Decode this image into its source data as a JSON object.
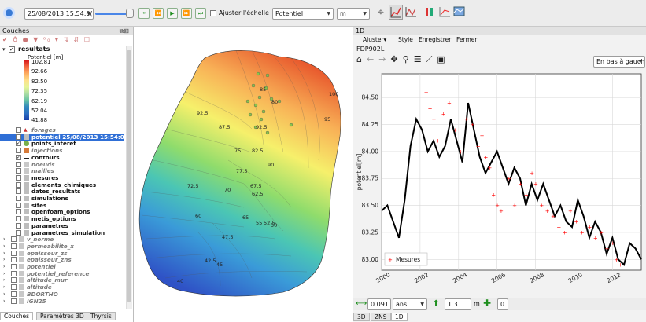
{
  "toolbar": {
    "datetime": "25/08/2013 15:54:0(",
    "ajuster_echelle": "Ajuster l'échelle",
    "variable": "Potentiel",
    "unit": "m"
  },
  "left_panel": {
    "title": "Couches",
    "buttons_label": "°°",
    "legend": {
      "layer_name": "resultats",
      "title": "Potentiel [m]",
      "values": [
        "102.81",
        "92.66",
        "82.50",
        "72.35",
        "62.19",
        "52.04",
        "41.88"
      ],
      "colors": [
        "#d7191c",
        "#fdae61",
        "#ffffbf",
        "#abdda4",
        "#2b83ba",
        "#1d5fb5",
        "#1a3fa8"
      ]
    },
    "layers": [
      {
        "label": "forages",
        "style": "grey-it",
        "checked": false
      },
      {
        "label": "potentiel 25/08/2013 15:54:0",
        "style": "selected",
        "checked": true
      },
      {
        "label": "points_interet",
        "style": "bold",
        "checked": true
      },
      {
        "label": "injections",
        "style": "grey-it",
        "checked": false
      },
      {
        "label": "contours",
        "style": "bold",
        "checked": true
      },
      {
        "label": "noeuds",
        "style": "grey-it",
        "checked": false
      },
      {
        "label": "mailles",
        "style": "grey-it",
        "checked": false
      },
      {
        "label": "mesures",
        "style": "bold",
        "checked": false
      },
      {
        "label": "elements_chimiques",
        "style": "bold",
        "checked": false
      },
      {
        "label": "dates_resultats",
        "style": "bold",
        "checked": false
      },
      {
        "label": "simulations",
        "style": "bold",
        "checked": false
      },
      {
        "label": "sites",
        "style": "bold",
        "checked": false
      },
      {
        "label": "openfoam_options",
        "style": "bold",
        "checked": false
      },
      {
        "label": "metis_options",
        "style": "bold",
        "checked": false
      },
      {
        "label": "parametres",
        "style": "bold",
        "checked": false
      },
      {
        "label": "parametres_simulation",
        "style": "bold",
        "checked": false
      },
      {
        "label": "v_norme",
        "style": "grey-it",
        "checked": false
      },
      {
        "label": "permeabilite_x",
        "style": "grey-it",
        "checked": false
      },
      {
        "label": "epaisseur_zs",
        "style": "grey-it",
        "checked": false
      },
      {
        "label": "epaisseur_zns",
        "style": "grey-it",
        "checked": false
      },
      {
        "label": "potentiel",
        "style": "grey-it",
        "checked": false
      },
      {
        "label": "potentiel_reference",
        "style": "grey-it",
        "checked": false
      },
      {
        "label": "altitude_mur",
        "style": "grey-it",
        "checked": false
      },
      {
        "label": "altitude",
        "style": "grey-it",
        "checked": false
      },
      {
        "label": "BDORTHO",
        "style": "grey-it",
        "checked": false
      },
      {
        "label": "IGN25",
        "style": "grey-it",
        "checked": false
      }
    ],
    "tabs": [
      "Couches",
      "Paramètres 3D",
      "Thyrsis"
    ]
  },
  "map": {
    "contour_labels": [
      "100",
      "92.5",
      "87.5",
      "95",
      "85",
      "92.5",
      "80",
      "82.5",
      "90",
      "75",
      "77.5",
      "67.5",
      "70",
      "62.5",
      "72.5",
      "65",
      "60",
      "55",
      "52.5",
      "50",
      "47.5",
      "45",
      "42.5",
      "40"
    ]
  },
  "right_panel": {
    "title": "1D",
    "menu": [
      "Ajuster",
      "Style",
      "Enregistrer",
      "Fermer"
    ],
    "plot_title": "FDP902L",
    "legend_position": "En bas à gauche",
    "bottom_value": "0.091",
    "bottom_unit": "ans",
    "bottom_scale": "1.3",
    "bottom_m": "m",
    "bottom_zero": "0",
    "tabs": [
      "3D",
      "ZNS",
      "1D"
    ]
  },
  "chart_data": {
    "type": "line",
    "title": "",
    "ylabel": "potentiel[m]",
    "xlabel": "",
    "xlim": [
      2000,
      2013.5
    ],
    "ylim": [
      82.9,
      84.72
    ],
    "x_ticks": [
      "2000",
      "2002",
      "2004",
      "2006",
      "2008",
      "2010",
      "2012"
    ],
    "y_ticks": [
      "83.00",
      "83.25",
      "83.50",
      "83.75",
      "84.00",
      "84.25",
      "84.50"
    ],
    "grid": true,
    "legend_placement": "bottom-left",
    "series": [
      {
        "name": "",
        "style": "line",
        "color": "#000000",
        "points": [
          [
            2000.0,
            83.45
          ],
          [
            2000.3,
            83.5
          ],
          [
            2000.6,
            83.35
          ],
          [
            2000.9,
            83.2
          ],
          [
            2001.2,
            83.55
          ],
          [
            2001.5,
            84.05
          ],
          [
            2001.8,
            84.3
          ],
          [
            2002.1,
            84.2
          ],
          [
            2002.4,
            84.0
          ],
          [
            2002.7,
            84.1
          ],
          [
            2003.0,
            83.95
          ],
          [
            2003.3,
            84.05
          ],
          [
            2003.6,
            84.3
          ],
          [
            2003.9,
            84.1
          ],
          [
            2004.2,
            83.9
          ],
          [
            2004.5,
            84.45
          ],
          [
            2004.8,
            84.2
          ],
          [
            2005.1,
            83.95
          ],
          [
            2005.4,
            83.8
          ],
          [
            2005.7,
            83.9
          ],
          [
            2006.0,
            84.0
          ],
          [
            2006.3,
            83.85
          ],
          [
            2006.6,
            83.7
          ],
          [
            2006.9,
            83.85
          ],
          [
            2007.2,
            83.75
          ],
          [
            2007.5,
            83.5
          ],
          [
            2007.8,
            83.7
          ],
          [
            2008.1,
            83.55
          ],
          [
            2008.4,
            83.7
          ],
          [
            2008.7,
            83.55
          ],
          [
            2009.0,
            83.4
          ],
          [
            2009.3,
            83.5
          ],
          [
            2009.6,
            83.35
          ],
          [
            2009.9,
            83.3
          ],
          [
            2010.2,
            83.55
          ],
          [
            2010.5,
            83.4
          ],
          [
            2010.8,
            83.2
          ],
          [
            2011.1,
            83.35
          ],
          [
            2011.4,
            83.25
          ],
          [
            2011.7,
            83.05
          ],
          [
            2012.0,
            83.2
          ],
          [
            2012.3,
            83.0
          ],
          [
            2012.6,
            82.95
          ],
          [
            2012.9,
            83.15
          ],
          [
            2013.2,
            83.1
          ],
          [
            2013.5,
            83.0
          ]
        ]
      },
      {
        "name": "Mesures",
        "style": "markers",
        "color": "#ff0000",
        "points": [
          [
            2002.3,
            84.55
          ],
          [
            2002.5,
            84.4
          ],
          [
            2002.7,
            84.3
          ],
          [
            2002.9,
            84.1
          ],
          [
            2003.2,
            84.35
          ],
          [
            2003.5,
            84.45
          ],
          [
            2003.8,
            84.2
          ],
          [
            2004.1,
            84.0
          ],
          [
            2004.4,
            84.3
          ],
          [
            2004.7,
            84.25
          ],
          [
            2005.0,
            84.05
          ],
          [
            2005.2,
            84.15
          ],
          [
            2005.4,
            83.95
          ],
          [
            2005.6,
            83.85
          ],
          [
            2005.8,
            83.6
          ],
          [
            2006.0,
            83.5
          ],
          [
            2006.2,
            83.45
          ],
          [
            2006.6,
            83.75
          ],
          [
            2006.9,
            83.5
          ],
          [
            2007.2,
            83.7
          ],
          [
            2007.5,
            83.6
          ],
          [
            2007.8,
            83.8
          ],
          [
            2008.0,
            83.7
          ],
          [
            2008.3,
            83.5
          ],
          [
            2008.6,
            83.45
          ],
          [
            2008.9,
            83.4
          ],
          [
            2009.2,
            83.3
          ],
          [
            2009.5,
            83.25
          ],
          [
            2009.8,
            83.45
          ],
          [
            2010.1,
            83.35
          ],
          [
            2010.4,
            83.25
          ],
          [
            2010.8,
            83.3
          ],
          [
            2011.1,
            83.2
          ],
          [
            2011.4,
            83.25
          ],
          [
            2011.7,
            83.1
          ],
          [
            2012.0,
            83.15
          ],
          [
            2012.2,
            83.0
          ],
          [
            2012.4,
            82.95
          ]
        ]
      }
    ]
  }
}
